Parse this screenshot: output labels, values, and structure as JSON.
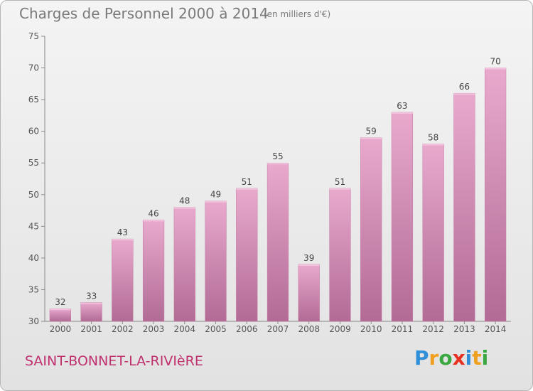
{
  "chart_data": {
    "type": "bar",
    "title": "Charges de Personnel 2000 à 2014",
    "subtitle": "(en milliers d'€)",
    "categories": [
      "2000",
      "2001",
      "2002",
      "2003",
      "2004",
      "2005",
      "2006",
      "2007",
      "2008",
      "2009",
      "2010",
      "2011",
      "2012",
      "2013",
      "2014"
    ],
    "values": [
      32,
      33,
      43,
      46,
      48,
      49,
      51,
      55,
      39,
      51,
      59,
      63,
      58,
      66,
      70
    ],
    "ylim": [
      30,
      75
    ],
    "yticks": [
      30,
      35,
      40,
      45,
      50,
      55,
      60,
      65,
      70,
      75
    ],
    "grid": false,
    "bar_color": "#d687b3"
  },
  "footer": {
    "commune": "SAINT-BONNET-LA-RIVIèRE"
  },
  "logo": {
    "letters": [
      "P",
      "r",
      "o",
      "x",
      "i",
      "t",
      "i"
    ],
    "colors": [
      "#2f8fd8",
      "#f0a020",
      "#3aa840",
      "#e83020",
      "#2f8fd8",
      "#f0a020",
      "#3aa840"
    ]
  }
}
